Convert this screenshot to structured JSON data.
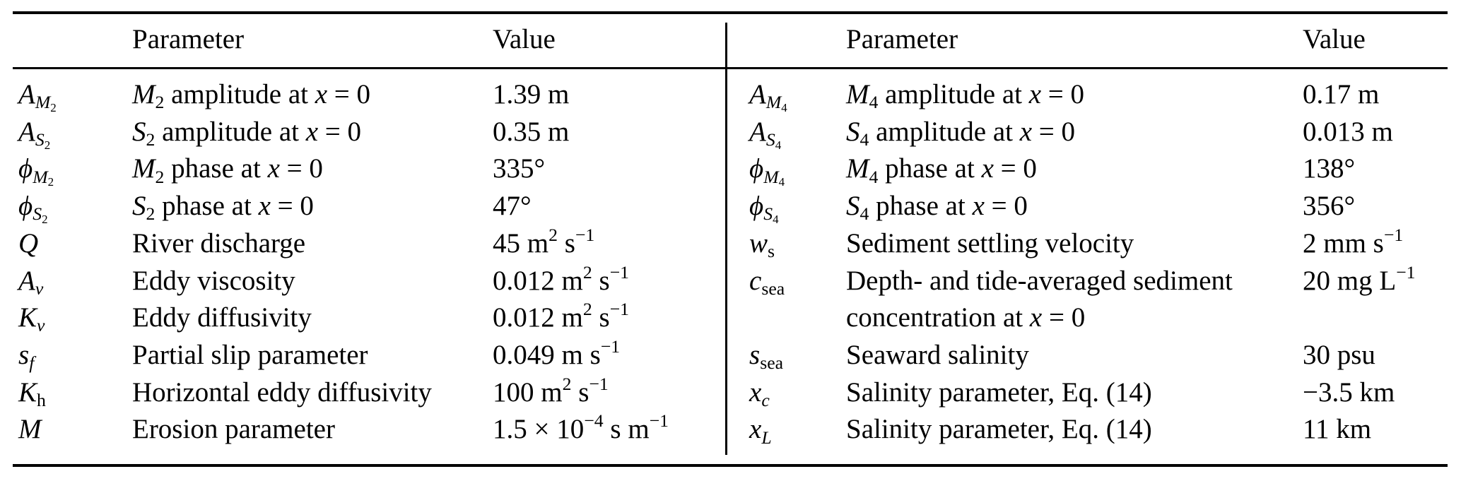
{
  "colors": {
    "background": "#ffffff",
    "text": "#000000",
    "rule": "#000000"
  },
  "table": {
    "left": {
      "header": {
        "parameter": "Parameter",
        "value": "Value"
      },
      "rows": [
        {
          "sym": "<i>A</i><sub><i>M</i><sub>2</sub></sub>",
          "param": "<i>M</i><sub>2</sub> amplitude at <i>x</i> = 0",
          "value": "1.39 m"
        },
        {
          "sym": "<i>A</i><sub><i>S</i><sub>2</sub></sub>",
          "param": "<i>S</i><sub>2</sub> amplitude at <i>x</i> = 0",
          "value": "0.35 m"
        },
        {
          "sym": "<i>ϕ</i><sub><i>M</i><sub>2</sub></sub>",
          "param": "<i>M</i><sub>2</sub> phase at <i>x</i> = 0",
          "value": "335°"
        },
        {
          "sym": "<i>ϕ</i><sub><i>S</i><sub>2</sub></sub>",
          "param": "<i>S</i><sub>2</sub> phase at <i>x</i> = 0",
          "value": "47°"
        },
        {
          "sym": "<i>Q</i>",
          "param": "River discharge",
          "value": "45 m<sup>2</sup> s<sup>−1</sup>"
        },
        {
          "sym": "<i>A</i><sub><i>ν</i></sub>",
          "param": "Eddy viscosity",
          "value": "0.012 m<sup>2</sup> s<sup>−1</sup>"
        },
        {
          "sym": "<i>K</i><sub><i>ν</i></sub>",
          "param": "Eddy diffusivity",
          "value": "0.012 m<sup>2</sup> s<sup>−1</sup>"
        },
        {
          "sym": "<i>s</i><sub><i>f</i></sub>",
          "param": "Partial slip parameter",
          "value": "0.049 m s<sup>−1</sup>"
        },
        {
          "sym": "<i>K</i><sub>h</sub>",
          "param": "Horizontal eddy diffusivity",
          "value": "100 m<sup>2</sup> s<sup>−1</sup>"
        },
        {
          "sym": "<i>M</i>",
          "param": "Erosion parameter",
          "value": "1.5 × 10<sup>−4</sup> s m<sup>−1</sup>"
        }
      ]
    },
    "right": {
      "header": {
        "parameter": "Parameter",
        "value": "Value"
      },
      "rows": [
        {
          "sym": "<i>A</i><sub><i>M</i><sub>4</sub></sub>",
          "param": "<i>M</i><sub>4</sub> amplitude at <i>x</i> = 0",
          "value": "0.17 m"
        },
        {
          "sym": "<i>A</i><sub><i>S</i><sub>4</sub></sub>",
          "param": "<i>S</i><sub>4</sub> amplitude at <i>x</i> = 0",
          "value": "0.013 m"
        },
        {
          "sym": "<i>ϕ</i><sub><i>M</i><sub>4</sub></sub>",
          "param": "<i>M</i><sub>4</sub> phase at <i>x</i> = 0",
          "value": "138°"
        },
        {
          "sym": "<i>ϕ</i><sub><i>S</i><sub>4</sub></sub>",
          "param": "<i>S</i><sub>4</sub> phase at <i>x</i> = 0",
          "value": "356°"
        },
        {
          "sym": "<i>w</i><sub>s</sub>",
          "param": "Sediment settling velocity",
          "value": "2 mm s<sup>−1</sup>"
        },
        {
          "sym": "<i>c</i><sub>sea</sub>",
          "param": "Depth- and tide-averaged sediment<br>concentration at <i>x</i> = 0",
          "value": "20 mg L<sup>−1</sup>"
        },
        {
          "sym": "<i>s</i><sub>sea</sub>",
          "param": "Seaward salinity",
          "value": "30 psu"
        },
        {
          "sym": "<i>x</i><sub><i>c</i></sub>",
          "param": "Salinity parameter, Eq. (14)",
          "value": "−3.5 km"
        },
        {
          "sym": "<i>x</i><sub><i>L</i></sub>",
          "param": "Salinity parameter, Eq. (14)",
          "value": "11 km"
        }
      ]
    }
  }
}
